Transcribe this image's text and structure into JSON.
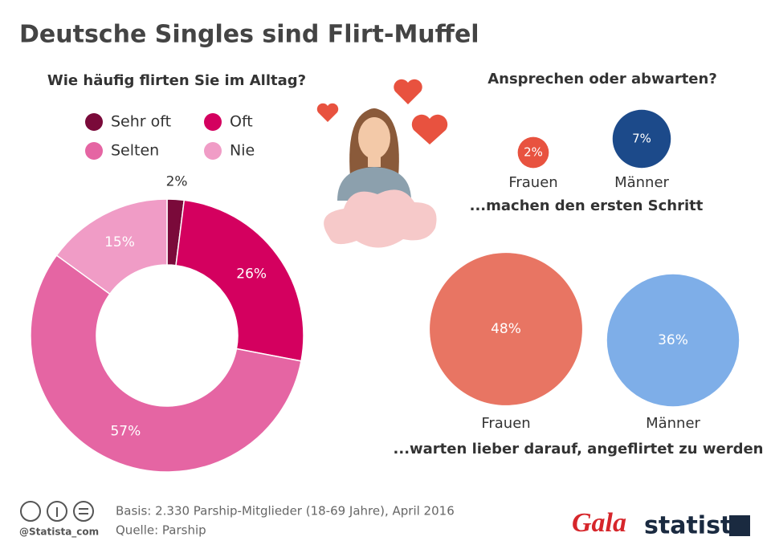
{
  "title": "Deutsche Singles sind Flirt-Muffel",
  "chart_data": [
    {
      "type": "donut",
      "title": "Wie häufig flirten Sie im Alltag?",
      "categories": [
        "Sehr oft",
        "Oft",
        "Selten",
        "Nie"
      ],
      "values": [
        2,
        26,
        57,
        15
      ],
      "value_labels": [
        "2%",
        "26%",
        "57%",
        "15%"
      ],
      "colors": [
        "#7a0a3a",
        "#d4005f",
        "#e565a3",
        "#f09cc6"
      ]
    },
    {
      "type": "bubble",
      "title": "Ansprechen oder abwarten?",
      "groups": [
        {
          "label": "...machen den ersten Schritt",
          "categories": [
            "Frauen",
            "Männer"
          ],
          "values": [
            2,
            7
          ],
          "value_labels": [
            "2%",
            "7%"
          ],
          "colors": [
            "#e8523f",
            "#1c4a8a"
          ]
        },
        {
          "label": "...warten lieber darauf, angeflirtet zu werden",
          "categories": [
            "Frauen",
            "Männer"
          ],
          "values": [
            48,
            36
          ],
          "value_labels": [
            "48%",
            "36%"
          ],
          "colors": [
            "#e87563",
            "#7eaee8"
          ]
        }
      ]
    }
  ],
  "footer": {
    "basis": "Basis: 2.330 Parship-Mitglieder (18-69 Jahre), April 2016",
    "source": "Quelle: Parship",
    "handle": "@Statista_com",
    "brand1": "Gala",
    "brand2": "statista"
  }
}
